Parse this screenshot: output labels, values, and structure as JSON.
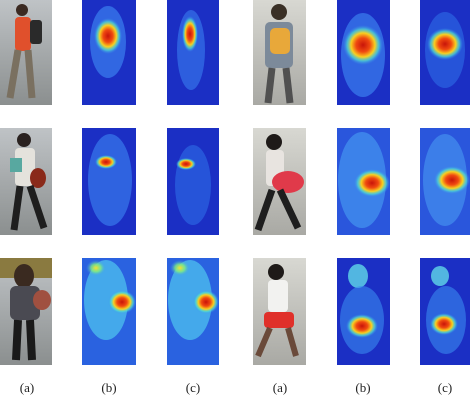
{
  "figure": {
    "labels": [
      "(a)",
      "(b)",
      "(c)",
      "(a)",
      "(b)",
      "(c)"
    ]
  }
}
